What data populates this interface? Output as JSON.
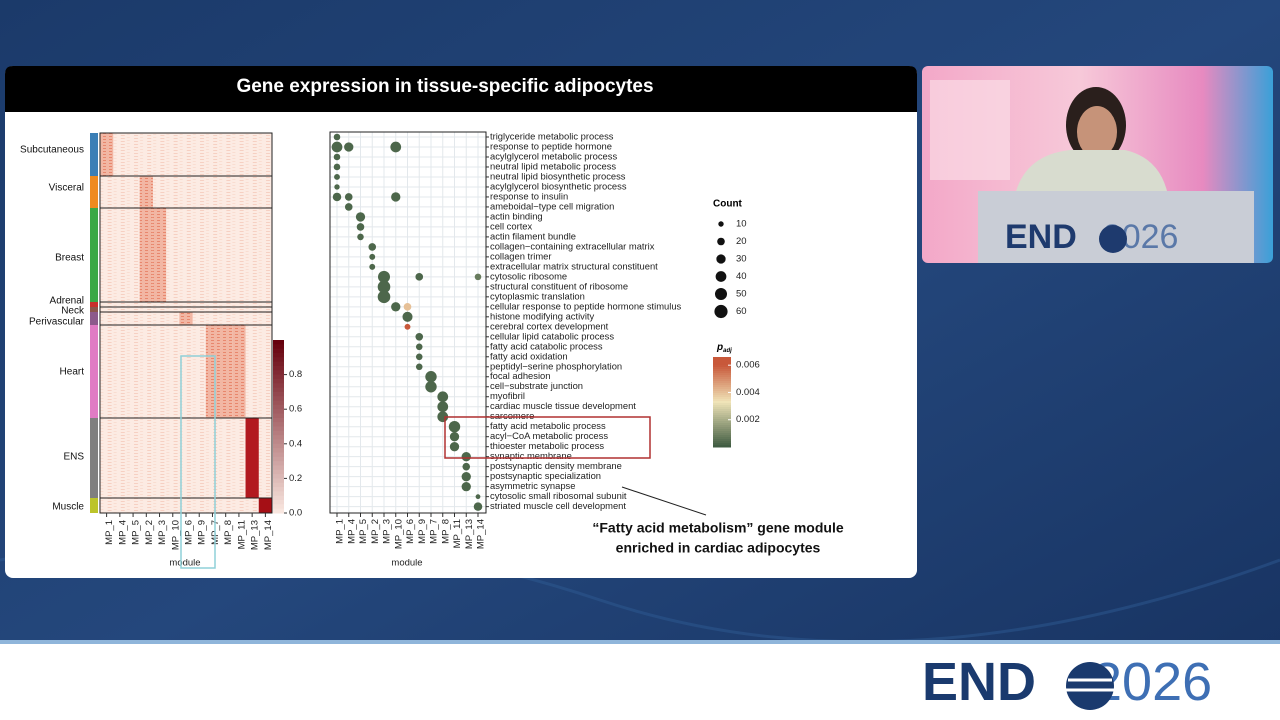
{
  "slide": {
    "title": "Gene expression in tissue-specific adipocytes",
    "annotation": [
      "“Fatty acid metabolism” gene module",
      "enriched in cardiac adipocytes"
    ]
  },
  "heatmap": {
    "x_label": "module",
    "modules": [
      "MP_1",
      "MP_4",
      "MP_5",
      "MP_2",
      "MP_3",
      "MP_10",
      "MP_6",
      "MP_9",
      "MP_7",
      "MP_8",
      "MP_11",
      "MP_13",
      "MP_14"
    ],
    "groups": [
      {
        "label": "Subcutaneous",
        "color": "#3b7fb6"
      },
      {
        "label": "Visceral",
        "color": "#ef8a1f"
      },
      {
        "label": "Breast",
        "color": "#3aa846"
      },
      {
        "label": "Adrenal",
        "color": "#c9302c"
      },
      {
        "label": "Neck",
        "color": "#8c564b"
      },
      {
        "label": "Perivascular",
        "color": "#8d5a8c"
      },
      {
        "label": "Heart",
        "color": "#e07bc4"
      },
      {
        "label": "ENS",
        "color": "#7f7f7f"
      },
      {
        "label": "Muscle",
        "color": "#bcc42a"
      }
    ],
    "colorbar": {
      "lim": [
        0,
        1
      ],
      "ticks": [
        {
          "value": 0,
          "label": "0.0"
        },
        0.2,
        0.4,
        0.6,
        0.8
      ]
    }
  },
  "dotplot": {
    "x_label": "module",
    "modules": [
      "MP_1",
      "MP_4",
      "MP_5",
      "MP_2",
      "MP_3",
      "MP_10",
      "MP_6",
      "MP_9",
      "MP_7",
      "MP_8",
      "MP_11",
      "MP_13",
      "MP_14"
    ],
    "terms": [
      "triglyceride metabolic process",
      "response to peptide hormone",
      "acylglycerol metabolic process",
      "neutral lipid metabolic process",
      "neutral lipid biosynthetic process",
      "acylglycerol biosynthetic process",
      "response to insulin",
      "ameboidal−type cell migration",
      "actin binding",
      "cell cortex",
      "actin filament bundle",
      "collagen−containing extracellular matrix",
      "collagen trimer",
      "extracellular matrix structural constituent",
      "cytosolic ribosome",
      "structural constituent of ribosome",
      "cytoplasmic translation",
      "cellular response to peptide hormone stimulus",
      "histone modifying activity",
      "cerebral cortex development",
      "cellular lipid catabolic process",
      "fatty acid catabolic process",
      "fatty acid oxidation",
      "peptidyl−serine phosphorylation",
      "focal adhesion",
      "cell−substrate junction",
      "myofibril",
      "cardiac muscle tissue development",
      "sarcomere",
      "fatty acid metabolic process",
      "acyl−CoA metabolic process",
      "thioester metabolic process",
      "synaptic membrane",
      "postsynaptic density membrane",
      "postsynaptic specialization",
      "asymmetric synapse",
      "cytosolic small ribosomal subunit",
      "striated muscle cell development"
    ],
    "dots": [
      {
        "term": "triglyceride metabolic process",
        "module": "MP_1",
        "count": 15,
        "padj": 0.0003
      },
      {
        "term": "response to peptide hormone",
        "module": "MP_1",
        "count": 40,
        "padj": 0.0003
      },
      {
        "term": "response to peptide hormone",
        "module": "MP_4",
        "count": 30,
        "padj": 0.0003
      },
      {
        "term": "response to peptide hormone",
        "module": "MP_10",
        "count": 40,
        "padj": 0.0003
      },
      {
        "term": "acylglycerol metabolic process",
        "module": "MP_1",
        "count": 15,
        "padj": 0.0003
      },
      {
        "term": "neutral lipid metabolic process",
        "module": "MP_1",
        "count": 15,
        "padj": 0.0003
      },
      {
        "term": "neutral lipid biosynthetic process",
        "module": "MP_1",
        "count": 12,
        "padj": 0.0003
      },
      {
        "term": "acylglycerol biosynthetic process",
        "module": "MP_1",
        "count": 10,
        "padj": 0.0003
      },
      {
        "term": "response to insulin",
        "module": "MP_1",
        "count": 25,
        "padj": 0.0003
      },
      {
        "term": "response to insulin",
        "module": "MP_4",
        "count": 20,
        "padj": 0.0003
      },
      {
        "term": "response to insulin",
        "module": "MP_10",
        "count": 30,
        "padj": 0.0003
      },
      {
        "term": "ameboidal−type cell migration",
        "module": "MP_4",
        "count": 20,
        "padj": 0.0003
      },
      {
        "term": "actin binding",
        "module": "MP_5",
        "count": 30,
        "padj": 0.0003
      },
      {
        "term": "cell cortex",
        "module": "MP_5",
        "count": 20,
        "padj": 0.0003
      },
      {
        "term": "actin filament bundle",
        "module": "MP_5",
        "count": 15,
        "padj": 0.0003
      },
      {
        "term": "collagen−containing extracellular matrix",
        "module": "MP_2",
        "count": 20,
        "padj": 0.0003
      },
      {
        "term": "collagen trimer",
        "module": "MP_2",
        "count": 12,
        "padj": 0.0003
      },
      {
        "term": "extracellular matrix structural constituent",
        "module": "MP_2",
        "count": 12,
        "padj": 0.0003
      },
      {
        "term": "cytosolic ribosome",
        "module": "MP_3",
        "count": 50,
        "padj": 0.0003
      },
      {
        "term": "cytosolic ribosome",
        "module": "MP_9",
        "count": 20,
        "padj": 0.0003
      },
      {
        "term": "cytosolic ribosome",
        "module": "MP_14",
        "count": 15,
        "padj": 0.0008
      },
      {
        "term": "structural constituent of ribosome",
        "module": "MP_3",
        "count": 55,
        "padj": 0.0003
      },
      {
        "term": "cytoplasmic translation",
        "module": "MP_3",
        "count": 55,
        "padj": 0.0003
      },
      {
        "term": "cellular response to peptide hormone stimulus",
        "module": "MP_10",
        "count": 30,
        "padj": 0.0003
      },
      {
        "term": "cellular response to peptide hormone stimulus",
        "module": "MP_6",
        "count": 20,
        "padj": 0.004
      },
      {
        "term": "histone modifying activity",
        "module": "MP_6",
        "count": 35,
        "padj": 0.0003
      },
      {
        "term": "cerebral cortex development",
        "module": "MP_6",
        "count": 12,
        "padj": 0.006
      },
      {
        "term": "cellular lipid catabolic process",
        "module": "MP_9",
        "count": 20,
        "padj": 0.0003
      },
      {
        "term": "fatty acid catabolic process",
        "module": "MP_9",
        "count": 15,
        "padj": 0.0003
      },
      {
        "term": "fatty acid oxidation",
        "module": "MP_9",
        "count": 15,
        "padj": 0.0003
      },
      {
        "term": "peptidyl−serine phosphorylation",
        "module": "MP_9",
        "count": 15,
        "padj": 0.0003
      },
      {
        "term": "focal adhesion",
        "module": "MP_7",
        "count": 45,
        "padj": 0.0003
      },
      {
        "term": "cell−substrate junction",
        "module": "MP_7",
        "count": 45,
        "padj": 0.0003
      },
      {
        "term": "myofibril",
        "module": "MP_8",
        "count": 40,
        "padj": 0.0003
      },
      {
        "term": "cardiac muscle tissue development",
        "module": "MP_8",
        "count": 40,
        "padj": 0.0003
      },
      {
        "term": "sarcomere",
        "module": "MP_8",
        "count": 40,
        "padj": 0.0003
      },
      {
        "term": "fatty acid metabolic process",
        "module": "MP_11",
        "count": 45,
        "padj": 0.0003
      },
      {
        "term": "acyl−CoA metabolic process",
        "module": "MP_11",
        "count": 30,
        "padj": 0.0003
      },
      {
        "term": "thioester metabolic process",
        "module": "MP_11",
        "count": 30,
        "padj": 0.0003
      },
      {
        "term": "synaptic membrane",
        "module": "MP_13",
        "count": 30,
        "padj": 0.0003
      },
      {
        "term": "postsynaptic density membrane",
        "module": "MP_13",
        "count": 20,
        "padj": 0.0003
      },
      {
        "term": "postsynaptic specialization",
        "module": "MP_13",
        "count": 30,
        "padj": 0.0003
      },
      {
        "term": "asymmetric synapse",
        "module": "MP_13",
        "count": 30,
        "padj": 0.0003
      },
      {
        "term": "cytosolic small ribosomal subunit",
        "module": "MP_14",
        "count": 8,
        "padj": 0.0003
      },
      {
        "term": "striated muscle cell development",
        "module": "MP_14",
        "count": 25,
        "padj": 0.0003
      }
    ],
    "count_legend": {
      "title": "Count",
      "values": [
        10,
        20,
        30,
        40,
        50,
        60
      ]
    },
    "padj_legend": {
      "symbol": "p",
      "subscript": "adj",
      "lim": [
        0,
        0.0066
      ],
      "ticks": [
        0.006,
        0.004,
        0.002
      ]
    }
  },
  "brand": {
    "podium": {
      "name": "END",
      "year": "2026"
    },
    "footer": {
      "name": "END",
      "year": "2026"
    }
  }
}
